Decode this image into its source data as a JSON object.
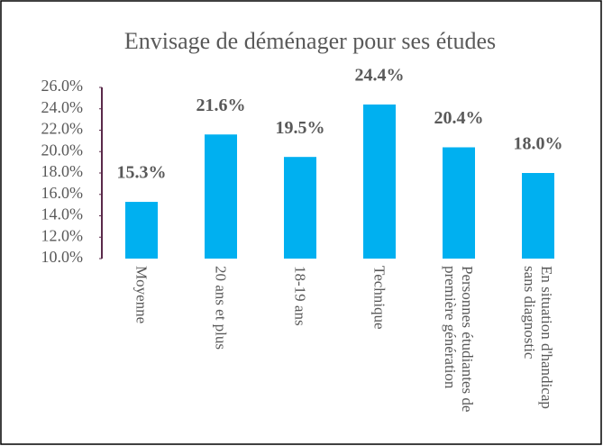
{
  "chart_data": {
    "type": "bar",
    "title": "Envisage de déménager pour ses études",
    "categories": [
      "Moyenne",
      "20 ans et plus",
      "18-19 ans",
      "Technique",
      "Personnes étudiantes de première génération",
      "En situation d'handicap sans diagnostic"
    ],
    "values": [
      15.3,
      21.6,
      19.5,
      24.4,
      20.4,
      18.0
    ],
    "value_labels": [
      "15.3%",
      "21.6%",
      "19.5%",
      "24.4%",
      "20.4%",
      "18.0%"
    ],
    "color": "#00b0f0",
    "ylim": [
      10,
      26
    ],
    "yticks": [
      {
        "value": 10,
        "label": "10.0%"
      },
      {
        "value": 12,
        "label": "12.0%"
      },
      {
        "value": 14,
        "label": "14.0%"
      },
      {
        "value": 16,
        "label": "16.0%"
      },
      {
        "value": 18,
        "label": "18.0%"
      },
      {
        "value": 20,
        "label": "20.0%"
      },
      {
        "value": 22,
        "label": "22.0%"
      },
      {
        "value": 24,
        "label": "24.0%"
      },
      {
        "value": 26,
        "label": "26.0%"
      }
    ],
    "grid": false
  }
}
